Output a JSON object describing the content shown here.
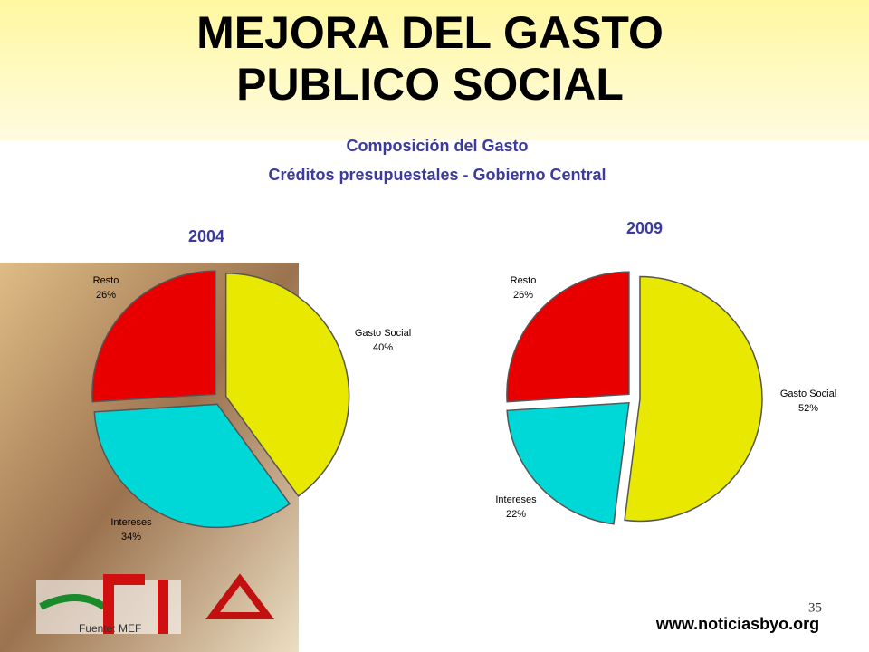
{
  "slide": {
    "title": [
      "MEJORA DEL GASTO",
      "PUBLICO SOCIAL"
    ],
    "subtitle": [
      "Composición del Gasto",
      "Créditos presupuestales - Gobierno Central"
    ],
    "source": "Fuente: MEF",
    "page_number": "35",
    "url": "www.noticiasbyo.org"
  },
  "chart_data": [
    {
      "type": "pie",
      "title": "2004",
      "categories": [
        "Gasto Social",
        "Intereses",
        "Resto"
      ],
      "values": [
        40,
        34,
        26
      ],
      "value_labels": [
        "40%",
        "34%",
        "26%"
      ],
      "colors": [
        "#e8e800",
        "#00d8d8",
        "#e80000"
      ]
    },
    {
      "type": "pie",
      "title": "2009",
      "categories": [
        "Gasto Social",
        "Intereses",
        "Resto"
      ],
      "values": [
        52,
        22,
        26
      ],
      "value_labels": [
        "52%",
        "22%",
        "26%"
      ],
      "colors": [
        "#e8e800",
        "#00d8d8",
        "#e80000"
      ]
    }
  ]
}
